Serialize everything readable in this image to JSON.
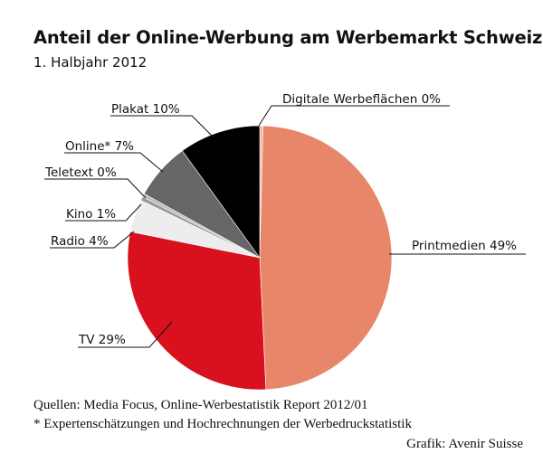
{
  "chart_data": {
    "type": "pie",
    "title": "Anteil der Online-Werbung am Werbemarkt Schweiz",
    "subtitle": "1. Halbjahr 2012",
    "slices": [
      {
        "label": "Digitale Werbeflächen 0%",
        "value": 0.4,
        "color": "#f2b9a4"
      },
      {
        "label": "Printmedien 49%",
        "value": 49,
        "color": "#e8866a"
      },
      {
        "label": "TV 29%",
        "value": 29,
        "color": "#d9111f"
      },
      {
        "label": "Radio 4%",
        "value": 4,
        "color": "#ededed"
      },
      {
        "label": "Kino 1%",
        "value": 0.5,
        "color": "#9a9a9a"
      },
      {
        "label": "Teletext 0%",
        "value": 0.4,
        "color": "#bdbdbd"
      },
      {
        "label": "Online* 7%",
        "value": 7,
        "color": "#666666"
      },
      {
        "label": "Plakat 10%",
        "value": 10,
        "color": "#000000"
      }
    ],
    "source": "Quellen: Media Focus, Online-Werbestatistik Report 2012/01",
    "footnote": "* Expertenschätzungen und Hochrechnungen der Werbedruckstatistik",
    "credit": "Grafik: Avenir Suisse"
  }
}
